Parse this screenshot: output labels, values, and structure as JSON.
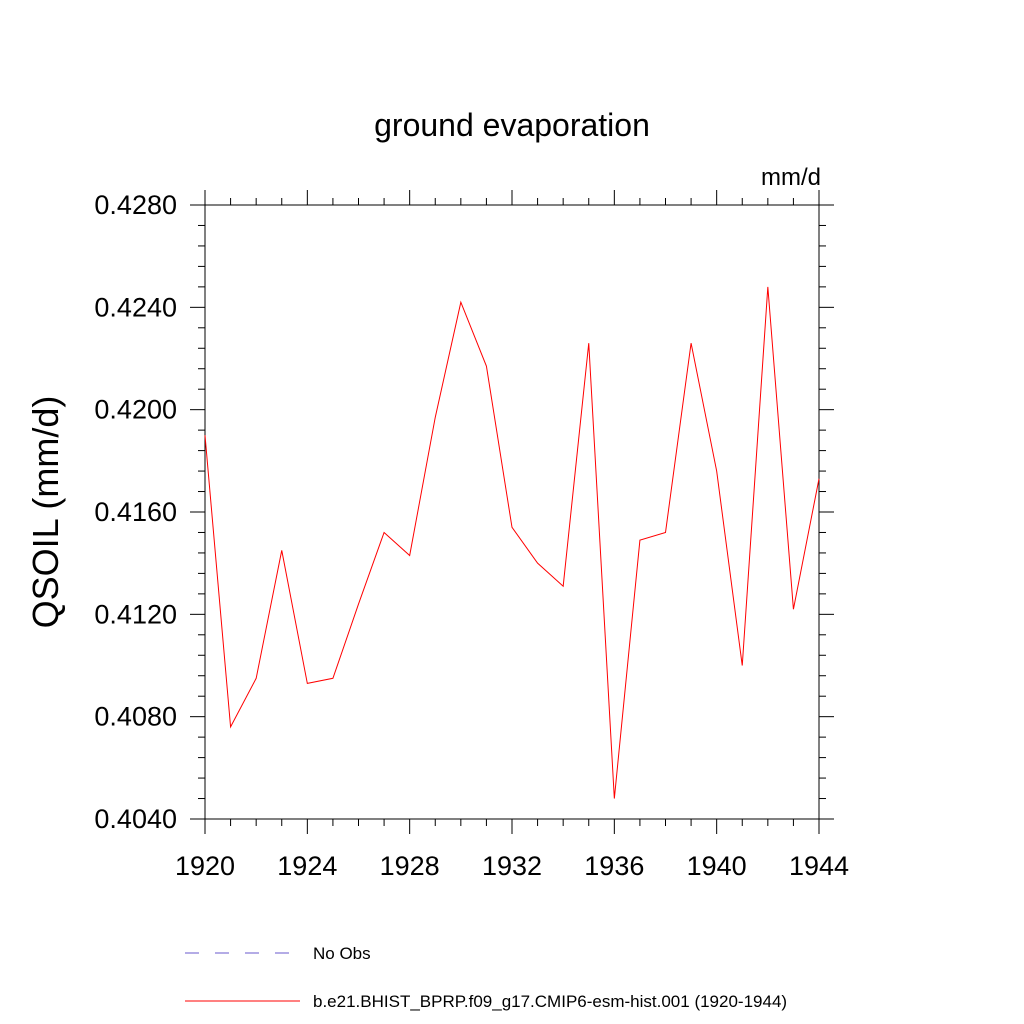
{
  "chart_data": {
    "type": "line",
    "title": "ground evaporation",
    "units_label": "mm/d",
    "xlabel": "",
    "ylabel": "QSOIL  (mm/d)",
    "xlim": [
      1920,
      1944
    ],
    "ylim": [
      0.404,
      0.428
    ],
    "x_ticks": [
      1920,
      1924,
      1928,
      1932,
      1936,
      1940,
      1944
    ],
    "y_ticks": [
      0.404,
      0.408,
      0.412,
      0.416,
      0.42,
      0.424,
      0.428
    ],
    "x_tick_labels": [
      "1920",
      "1924",
      "1928",
      "1932",
      "1936",
      "1940",
      "1944"
    ],
    "y_tick_labels": [
      "0.4040",
      "0.4080",
      "0.4120",
      "0.4160",
      "0.4200",
      "0.4240",
      "0.4280"
    ],
    "series": [
      {
        "name": "b.e21.BHIST_BPRP.f09_g17.CMIP6-esm-hist.001 (1920-1944)",
        "color": "#ff0000",
        "style": "solid",
        "x": [
          1920,
          1921,
          1922,
          1923,
          1924,
          1925,
          1926,
          1927,
          1928,
          1929,
          1930,
          1931,
          1932,
          1933,
          1934,
          1935,
          1936,
          1937,
          1938,
          1939,
          1940,
          1941,
          1942,
          1943,
          1944
        ],
        "values": [
          0.419,
          0.4076,
          0.4095,
          0.4145,
          0.4093,
          0.4095,
          0.4124,
          0.4152,
          0.4143,
          0.4197,
          0.4242,
          0.4217,
          0.4154,
          0.414,
          0.4131,
          0.4226,
          0.4048,
          0.4149,
          0.4152,
          0.4226,
          0.4176,
          0.41,
          0.4248,
          0.4122,
          0.4173
        ]
      }
    ],
    "legend": [
      {
        "label": "No Obs",
        "color": "#6a5acd",
        "style": "dashed"
      },
      {
        "label": "b.e21.BHIST_BPRP.f09_g17.CMIP6-esm-hist.001 (1920-1944)",
        "color": "#ff0000",
        "style": "solid"
      }
    ]
  }
}
